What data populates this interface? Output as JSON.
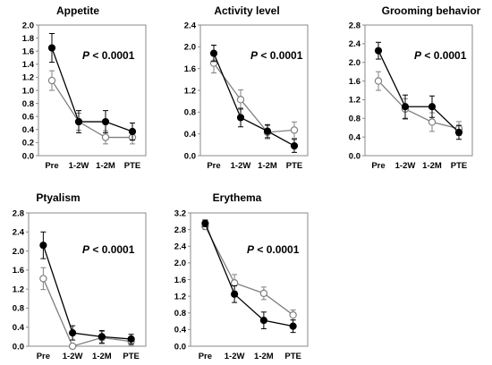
{
  "chart_data": [
    {
      "type": "line",
      "title": "Appetite",
      "annotation": {
        "p": "P",
        "rest": " < 0.0001"
      },
      "categories": [
        "Pre",
        "1-2W",
        "1-2M",
        "PTE"
      ],
      "ylim": [
        0,
        2.0
      ],
      "yticks": [
        "0.0",
        "0.2",
        "0.4",
        "0.6",
        "0.8",
        "1.0",
        "1.2",
        "1.4",
        "1.6",
        "1.8",
        "2.0"
      ],
      "grid": false,
      "series": [
        {
          "marker": "filled",
          "color": "#000000",
          "values": [
            1.65,
            0.52,
            0.52,
            0.37
          ],
          "err": [
            0.22,
            0.17,
            0.17,
            0.13
          ]
        },
        {
          "marker": "open",
          "color": "#808080",
          "values": [
            1.15,
            0.52,
            0.28,
            0.28
          ],
          "err": [
            0.15,
            0.13,
            0.1,
            0.1
          ]
        }
      ]
    },
    {
      "type": "line",
      "title": "Activity level",
      "annotation": {
        "p": "P",
        "rest": " < 0.0001"
      },
      "categories": [
        "Pre",
        "1-2W",
        "1-2M",
        "PTE"
      ],
      "ylim": [
        0,
        2.4
      ],
      "yticks": [
        "0.0",
        "0.4",
        "0.8",
        "1.2",
        "1.6",
        "2.0",
        "2.4"
      ],
      "grid": false,
      "series": [
        {
          "marker": "filled",
          "color": "#000000",
          "values": [
            1.88,
            0.7,
            0.45,
            0.18
          ],
          "err": [
            0.15,
            0.17,
            0.12,
            0.12
          ]
        },
        {
          "marker": "open",
          "color": "#808080",
          "values": [
            1.7,
            1.03,
            0.43,
            0.47
          ],
          "err": [
            0.18,
            0.18,
            0.12,
            0.15
          ]
        }
      ]
    },
    {
      "type": "line",
      "title": "Grooming behavior",
      "annotation": {
        "p": "P",
        "rest": " < 0.0001"
      },
      "categories": [
        "Pre",
        "1-2W",
        "1-2M",
        "PTE"
      ],
      "ylim": [
        0,
        2.8
      ],
      "yticks": [
        "0.0",
        "0.4",
        "0.8",
        "1.2",
        "1.6",
        "2.0",
        "2.4",
        "2.8"
      ],
      "grid": false,
      "series": [
        {
          "marker": "filled",
          "color": "#000000",
          "values": [
            2.25,
            1.05,
            1.05,
            0.5
          ],
          "err": [
            0.18,
            0.25,
            0.23,
            0.15
          ]
        },
        {
          "marker": "open",
          "color": "#808080",
          "values": [
            1.6,
            1.0,
            0.72,
            0.58
          ],
          "err": [
            0.2,
            0.22,
            0.2,
            0.15
          ]
        }
      ]
    },
    {
      "type": "line",
      "title": "Ptyalism",
      "annotation": {
        "p": "P",
        "rest": " < 0.0001"
      },
      "categories": [
        "Pre",
        "1-2W",
        "1-2M",
        "PTE"
      ],
      "ylim": [
        0,
        2.8
      ],
      "yticks": [
        "0.0",
        "0.4",
        "0.8",
        "1.2",
        "1.6",
        "2.0",
        "2.4",
        "2.8"
      ],
      "grid": false,
      "series": [
        {
          "marker": "filled",
          "color": "#000000",
          "values": [
            2.12,
            0.28,
            0.2,
            0.15
          ],
          "err": [
            0.28,
            0.15,
            0.13,
            0.1
          ]
        },
        {
          "marker": "open",
          "color": "#808080",
          "values": [
            1.42,
            0.0,
            0.18,
            0.1
          ],
          "err": [
            0.23,
            0.02,
            0.13,
            0.08
          ]
        }
      ]
    },
    {
      "type": "line",
      "title": "Erythema",
      "annotation": {
        "p": "P",
        "rest": " < 0.0001"
      },
      "categories": [
        "Pre",
        "1-2W",
        "1-2M",
        "PTE"
      ],
      "ylim": [
        0,
        3.2
      ],
      "yticks": [
        "0.0",
        "0.4",
        "0.8",
        "1.2",
        "1.6",
        "2.0",
        "2.4",
        "2.8",
        "3.2"
      ],
      "grid": false,
      "series": [
        {
          "marker": "filled",
          "color": "#000000",
          "values": [
            2.95,
            1.25,
            0.62,
            0.48
          ],
          "err": [
            0.08,
            0.2,
            0.2,
            0.15
          ]
        },
        {
          "marker": "open",
          "color": "#808080",
          "values": [
            2.88,
            1.52,
            1.27,
            0.75
          ],
          "err": [
            0.08,
            0.2,
            0.15,
            0.12
          ]
        }
      ]
    }
  ]
}
